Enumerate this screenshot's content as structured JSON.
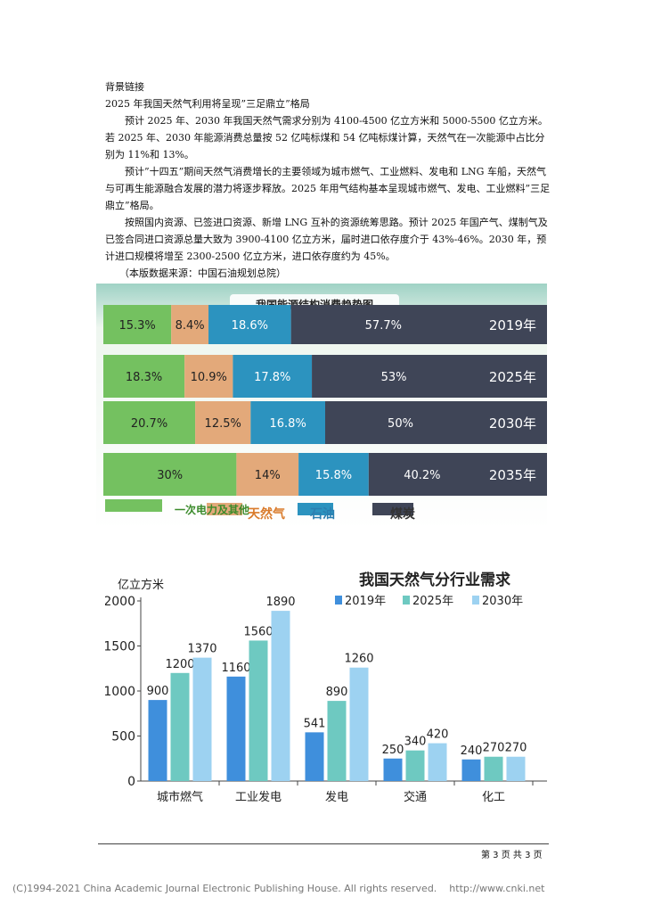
{
  "article": {
    "heading": "背景链接",
    "subtitle": "2025 年我国天然气利用将呈现”三足鼎立”格局",
    "p1": "预计 2025 年、2030 年我国天然气需求分别为 4100-4500 亿立方米和 5000-5500 亿立方米。若 2025 年、2030 年能源消费总量按 52 亿吨标煤和 54 亿吨标煤计算，天然气在一次能源中占比分别为 11%和 13%。",
    "p2": "预计”十四五”期间天然气消费增长的主要领域为城市燃气、工业燃料、发电和 LNG 车船，天然气与可再生能源融合发展的潜力将逐步释放。2025 年用气结构基本呈现城市燃气、发电、工业燃料”三足鼎立”格局。",
    "p3": "按照国内资源、已签进口资源、新增 LNG 互补的资源统筹思路。预计 2025 年国产气、煤制气及已签合同进口资源总量大致为 3900-4100 亿立方米，届时进口依存度介于 43%-46%。2030 年，预计进口规模将增至 2300-2500 亿立方米，进口依存度约为 45%。",
    "source": "（本版数据来源：中国石油规划总院）"
  },
  "chart_data": [
    {
      "type": "bar",
      "title": "我国能源结构消费趋势图",
      "categories": [
        "2019年",
        "2025年",
        "2030年",
        "2035年"
      ],
      "series": [
        {
          "name": "一次电力及其他",
          "values": [
            15.3,
            18.3,
            20.7,
            30
          ],
          "labels": [
            "15.3%",
            "18.3%",
            "20.7%",
            "30%"
          ]
        },
        {
          "name": "天然气",
          "values": [
            8.4,
            10.9,
            12.5,
            14
          ],
          "labels": [
            "8.4%",
            "10.9%",
            "12.5%",
            "14%"
          ]
        },
        {
          "name": "石油",
          "values": [
            18.6,
            17.8,
            16.8,
            15.8
          ],
          "labels": [
            "18.6%",
            "17.8%",
            "16.8%",
            "15.8%"
          ]
        },
        {
          "name": "煤炭",
          "values": [
            57.7,
            53,
            50,
            40.2
          ],
          "labels": [
            "57.7%",
            "53%",
            "50%",
            "40.2%"
          ]
        }
      ],
      "colors": [
        "#74c160",
        "#e3a97a",
        "#2c93bf",
        "#3f4557"
      ]
    },
    {
      "type": "bar",
      "title": "我国天然气分行业需求",
      "ylabel": "亿立方米",
      "ylim": [
        0,
        2000
      ],
      "yticks": [
        "0",
        "500",
        "1000",
        "1500",
        "2000"
      ],
      "categories": [
        "城市燃气",
        "工业发电",
        "发电",
        "交通",
        "化工"
      ],
      "series": [
        {
          "name": "2019年",
          "values": [
            900,
            1160,
            541,
            250,
            240
          ]
        },
        {
          "name": "2025年",
          "values": [
            1200,
            1560,
            890,
            340,
            270
          ]
        },
        {
          "name": "2030年",
          "values": [
            1370,
            1890,
            1260,
            420,
            270
          ]
        }
      ],
      "colors": [
        "#3f8fdc",
        "#6ec9c1",
        "#9dd2f1"
      ]
    }
  ],
  "footer": {
    "page": "第 3 页  共 3 页",
    "copyright": "(C)1994-2021 China Academic Journal Electronic Publishing House. All rights reserved.    http://www.cnki.net"
  }
}
